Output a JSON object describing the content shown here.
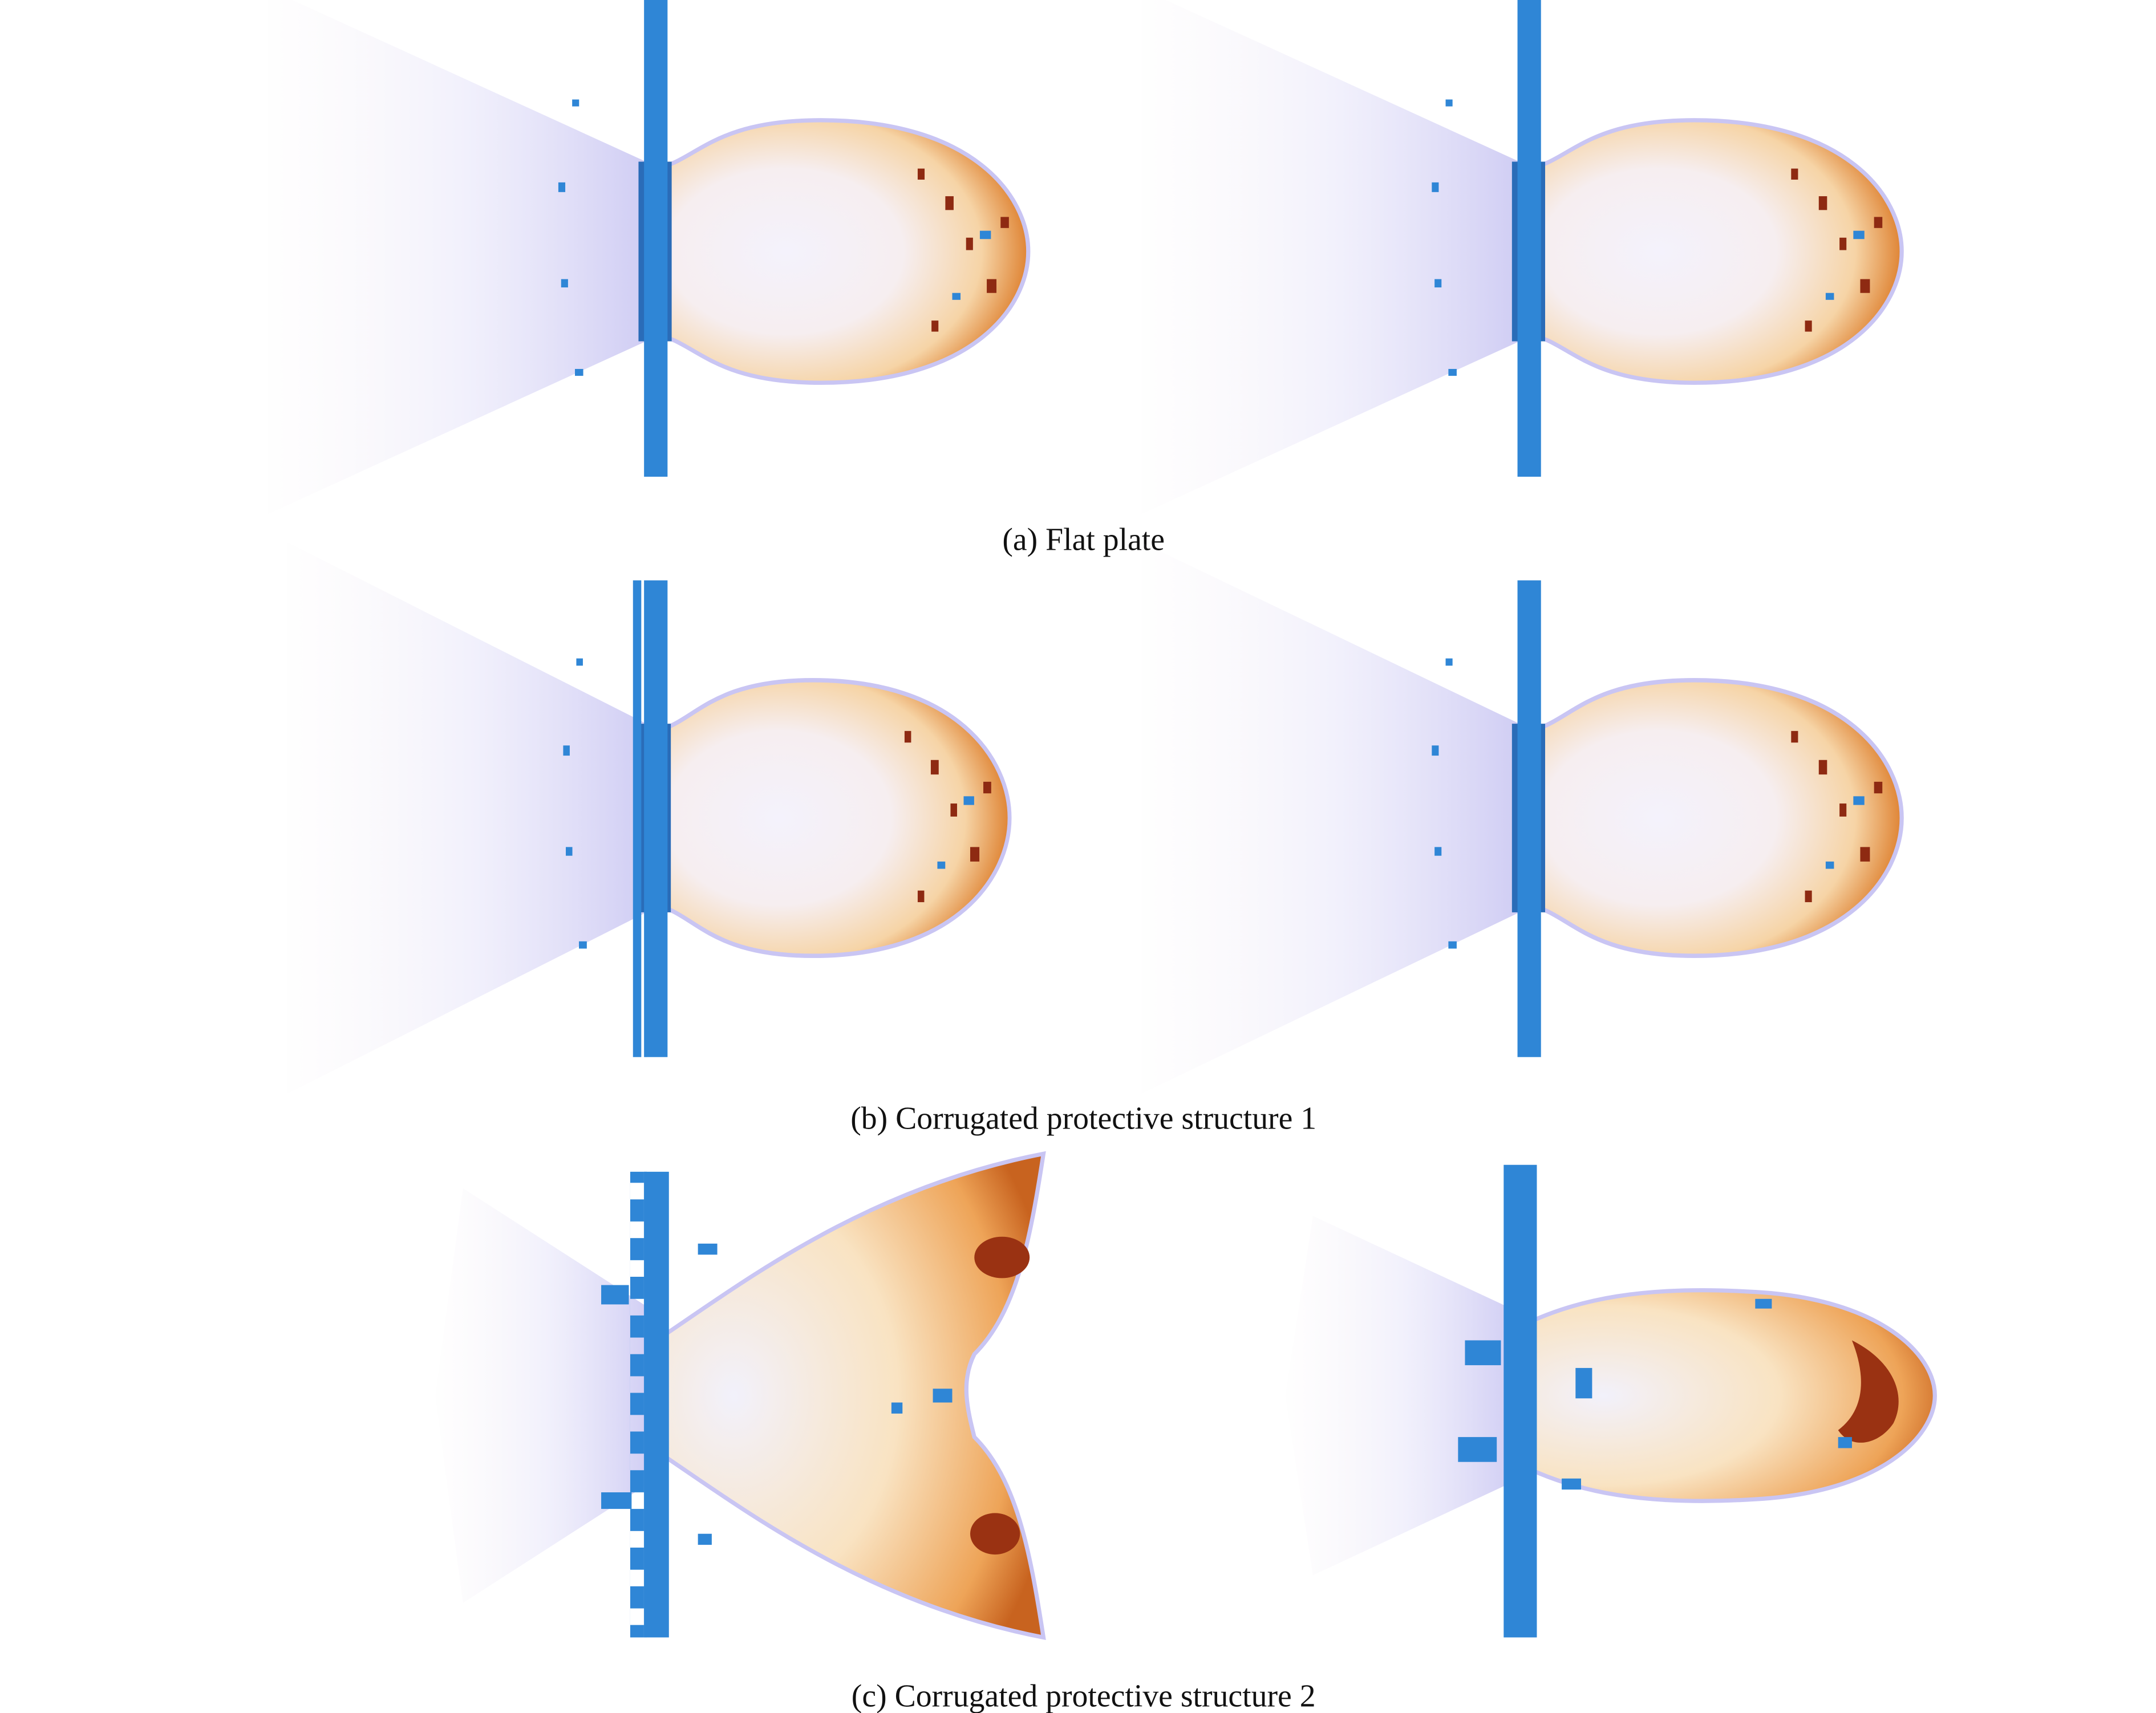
{
  "figure": {
    "panels": [
      {
        "caption": "(a) Flat plate"
      },
      {
        "caption": "(b) Corrugated protective structure 1"
      },
      {
        "caption": "(c) Corrugated protective structure 2"
      }
    ]
  }
}
